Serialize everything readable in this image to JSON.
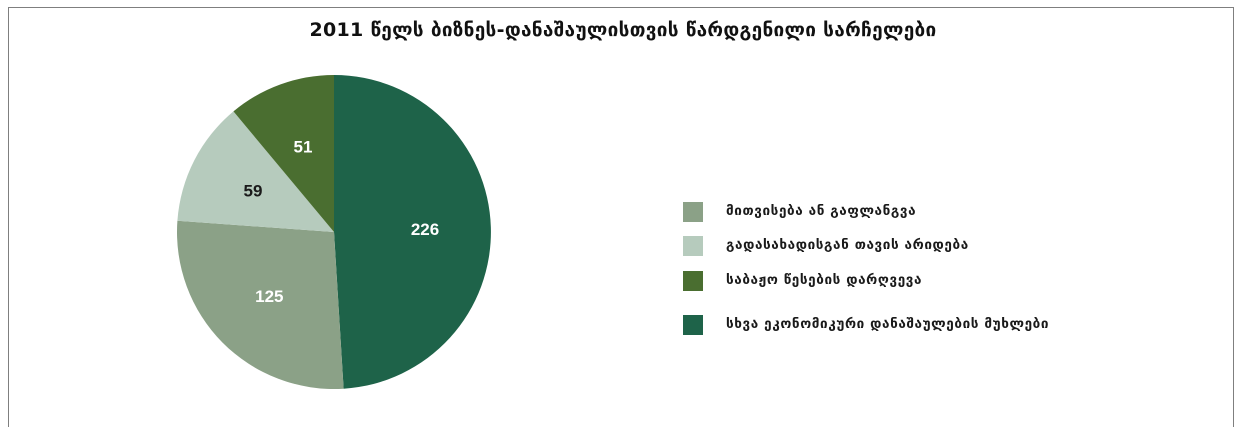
{
  "title": "2011 წელს ბიზნეს-დანაშაულისთვის წარდგენილი სარჩელები",
  "chart_data": {
    "type": "pie",
    "title": "2011 წელს ბიზნეს-დანაშაულისთვის წარდგენილი სარჩელები",
    "slices": [
      {
        "name": "სხვა ეკონომიკური დანაშაულების მუხლები",
        "value": 226,
        "color": "#1e6349",
        "label_color": "#ffffff"
      },
      {
        "name": "მითვისება ან გაფლანგვა",
        "value": 125,
        "color": "#8ba187",
        "label_color": "#ffffff"
      },
      {
        "name": "გადასახადისგან თავის არიდება",
        "value": 59,
        "color": "#b6cbbd",
        "label_color": "#1a1a1a"
      },
      {
        "name": "საბაჟო წესების დარღვევა",
        "value": 51,
        "color": "#4a6e30",
        "label_color": "#ffffff"
      }
    ],
    "legend": {
      "position": "right",
      "items": [
        {
          "label": "მითვისება ან გაფლანგვა",
          "color": "#8ba187"
        },
        {
          "label": "გადასახადისგან თავის არიდება",
          "color": "#b6cbbd"
        },
        {
          "label": "საბაჟო წესების დარღვევა",
          "color": "#4a6e30"
        },
        {
          "label": "სხვა ეკონომიკური დანაშაულების მუხლები",
          "color": "#1e6349"
        }
      ]
    }
  }
}
